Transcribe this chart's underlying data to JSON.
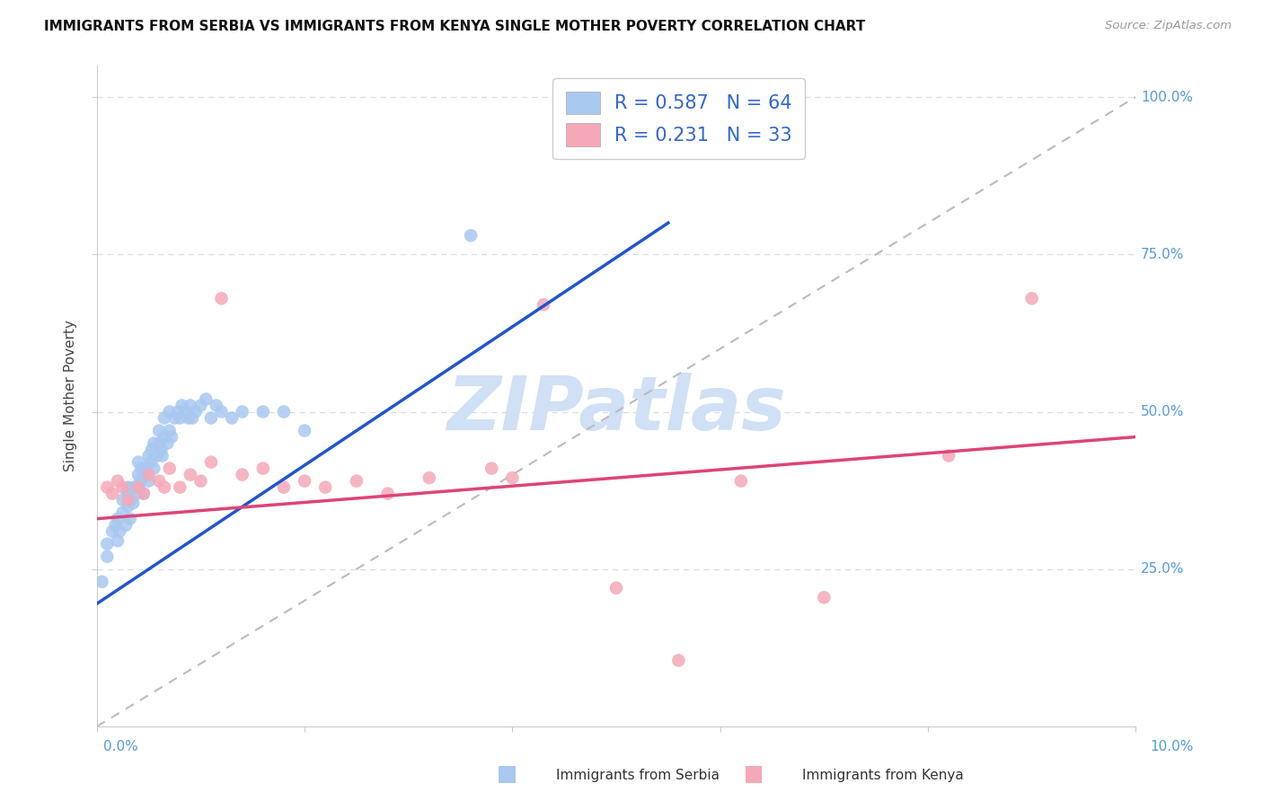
{
  "title": "IMMIGRANTS FROM SERBIA VS IMMIGRANTS FROM KENYA SINGLE MOTHER POVERTY CORRELATION CHART",
  "source": "Source: ZipAtlas.com",
  "ylabel": "Single Mother Poverty",
  "serbia_R": 0.587,
  "serbia_N": 64,
  "kenya_R": 0.231,
  "kenya_N": 33,
  "serbia_color": "#a8c8f0",
  "kenya_color": "#f5a8b8",
  "serbia_line_color": "#2255cc",
  "kenya_line_color": "#dd4477",
  "diagonal_color": "#bbbbbb",
  "watermark_color": "#d0e0f5",
  "background_color": "#ffffff",
  "grid_color": "#d8dde8",
  "xlim": [
    0.0,
    0.1
  ],
  "ylim": [
    0.0,
    1.05
  ],
  "serbia_x": [
    0.0005,
    0.001,
    0.001,
    0.0015,
    0.0018,
    0.002,
    0.002,
    0.0022,
    0.0025,
    0.0025,
    0.0028,
    0.003,
    0.003,
    0.003,
    0.0032,
    0.0033,
    0.0035,
    0.0035,
    0.0038,
    0.004,
    0.004,
    0.004,
    0.0042,
    0.0043,
    0.0045,
    0.0045,
    0.0048,
    0.005,
    0.005,
    0.0052,
    0.0053,
    0.0055,
    0.0055,
    0.0058,
    0.006,
    0.006,
    0.0062,
    0.0063,
    0.0065,
    0.0065,
    0.0068,
    0.007,
    0.007,
    0.0072,
    0.0075,
    0.0078,
    0.008,
    0.0082,
    0.0085,
    0.0088,
    0.009,
    0.0092,
    0.0095,
    0.01,
    0.0105,
    0.011,
    0.0115,
    0.012,
    0.013,
    0.014,
    0.016,
    0.018,
    0.02,
    0.036
  ],
  "serbia_y": [
    0.23,
    0.27,
    0.29,
    0.31,
    0.32,
    0.295,
    0.33,
    0.31,
    0.34,
    0.36,
    0.32,
    0.35,
    0.37,
    0.38,
    0.33,
    0.36,
    0.355,
    0.38,
    0.37,
    0.38,
    0.4,
    0.42,
    0.39,
    0.41,
    0.37,
    0.4,
    0.41,
    0.39,
    0.43,
    0.42,
    0.44,
    0.41,
    0.45,
    0.43,
    0.45,
    0.47,
    0.44,
    0.43,
    0.46,
    0.49,
    0.45,
    0.47,
    0.5,
    0.46,
    0.49,
    0.5,
    0.49,
    0.51,
    0.5,
    0.49,
    0.51,
    0.49,
    0.5,
    0.51,
    0.52,
    0.49,
    0.51,
    0.5,
    0.49,
    0.5,
    0.5,
    0.5,
    0.47,
    0.78
  ],
  "kenya_x": [
    0.001,
    0.0015,
    0.002,
    0.0025,
    0.003,
    0.004,
    0.0045,
    0.005,
    0.006,
    0.0065,
    0.007,
    0.008,
    0.009,
    0.01,
    0.011,
    0.012,
    0.014,
    0.016,
    0.018,
    0.02,
    0.022,
    0.025,
    0.028,
    0.032,
    0.038,
    0.04,
    0.043,
    0.05,
    0.056,
    0.062,
    0.07,
    0.082,
    0.09
  ],
  "kenya_y": [
    0.38,
    0.37,
    0.39,
    0.38,
    0.36,
    0.38,
    0.37,
    0.4,
    0.39,
    0.38,
    0.41,
    0.38,
    0.4,
    0.39,
    0.42,
    0.68,
    0.4,
    0.41,
    0.38,
    0.39,
    0.38,
    0.39,
    0.37,
    0.395,
    0.41,
    0.395,
    0.67,
    0.22,
    0.105,
    0.39,
    0.205,
    0.43,
    0.68
  ],
  "serbia_line_x": [
    0.0,
    0.055
  ],
  "serbia_line_y": [
    0.195,
    0.8
  ],
  "kenya_line_x": [
    0.0,
    0.1
  ],
  "kenya_line_y": [
    0.33,
    0.46
  ]
}
